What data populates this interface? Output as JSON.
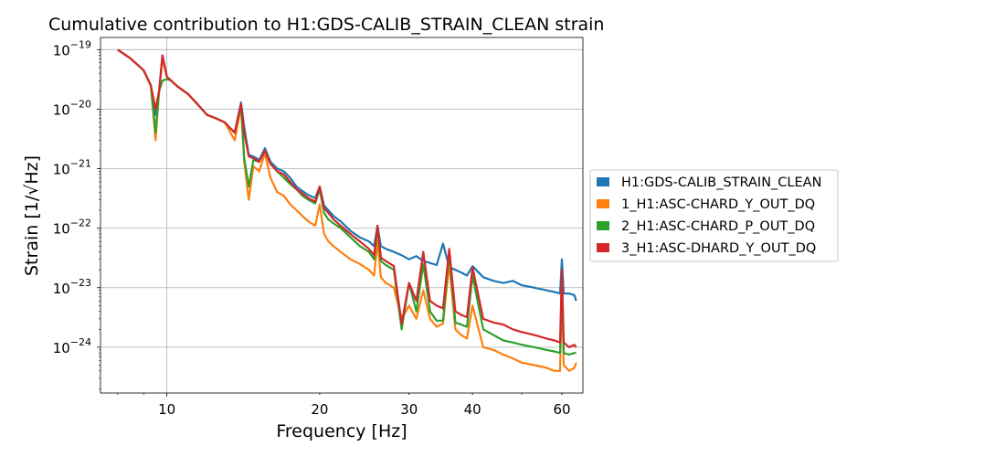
{
  "chart_data": {
    "type": "line",
    "title": "Cumulative contribution to H1:GDS-CALIB_STRAIN_CLEAN strain",
    "xlabel": "Frequency [Hz]",
    "ylabel": "Strain [1/√Hz]",
    "xscale": "log",
    "yscale": "log",
    "xlim": [
      7.4,
      66
    ],
    "ylim": [
      1.7e-25,
      1.6e-19
    ],
    "grid": true,
    "legend_position": "right-outside",
    "x_ticks": [
      {
        "value": 10,
        "label": "10"
      },
      {
        "value": 20,
        "label": "20"
      },
      {
        "value": 30,
        "label": "30"
      },
      {
        "value": 40,
        "label": "40"
      },
      {
        "value": 60,
        "label": "60"
      }
    ],
    "y_ticks": [
      {
        "value": 1e-19,
        "base": "10",
        "exp": "−19"
      },
      {
        "value": 1e-20,
        "base": "10",
        "exp": "−20"
      },
      {
        "value": 1e-21,
        "base": "10",
        "exp": "−21"
      },
      {
        "value": 1e-22,
        "base": "10",
        "exp": "−22"
      },
      {
        "value": 1e-23,
        "base": "10",
        "exp": "−23"
      },
      {
        "value": 1e-24,
        "base": "10",
        "exp": "−24"
      }
    ],
    "series": [
      {
        "name": "H1:GDS-CALIB_STRAIN_CLEAN",
        "color": "#1f77b4",
        "x": [
          8.0,
          8.5,
          9.0,
          9.3,
          9.5,
          9.65,
          9.8,
          10.0,
          10.2,
          10.5,
          11.0,
          11.5,
          12.0,
          12.5,
          13.0,
          13.6,
          14.0,
          14.2,
          14.5,
          14.8,
          15.2,
          15.6,
          16.0,
          16.5,
          17.0,
          17.5,
          18.0,
          18.5,
          19.0,
          19.6,
          20.0,
          20.4,
          20.8,
          21.3,
          22.0,
          23.0,
          24.0,
          25.0,
          25.6,
          26.0,
          26.4,
          27.0,
          28.0,
          29.0,
          30.0,
          31.0,
          32.0,
          33.0,
          34.0,
          35.0,
          36.0,
          37.0,
          38.0,
          39.0,
          40.0,
          42.0,
          44.0,
          46.0,
          48.0,
          50.0,
          53.0,
          56.0,
          58.0,
          59.5,
          60.0,
          60.5,
          62.0,
          63.5,
          64.0
        ],
        "y": [
          1e-19,
          7e-20,
          4.5e-20,
          2.5e-20,
          8e-21,
          2e-20,
          8e-20,
          3.5e-20,
          3e-20,
          2.4e-20,
          1.8e-20,
          1.2e-20,
          8e-21,
          7e-21,
          6e-21,
          4e-21,
          1.3e-20,
          5e-21,
          1.7e-21,
          1.6e-21,
          1.4e-21,
          2.2e-21,
          1.3e-21,
          1e-21,
          9e-22,
          7e-22,
          5e-22,
          4.2e-22,
          3.6e-22,
          3.2e-22,
          5e-22,
          2.4e-22,
          2e-22,
          1.6e-22,
          1.3e-22,
          9e-23,
          7e-23,
          6e-23,
          5e-23,
          1.1e-22,
          5e-23,
          4.5e-23,
          4e-23,
          3.5e-23,
          3e-23,
          3.4e-23,
          2.8e-23,
          2.6e-23,
          2.4e-23,
          5.5e-23,
          2.2e-23,
          2e-23,
          1.8e-23,
          1.6e-23,
          2.3e-23,
          1.5e-23,
          1.3e-23,
          1.2e-23,
          1.3e-23,
          1.1e-23,
          1e-23,
          9e-24,
          8.5e-24,
          8e-24,
          3e-23,
          8e-24,
          8e-24,
          7.5e-24,
          6e-24
        ]
      },
      {
        "name": "1_H1:ASC-CHARD_Y_OUT_DQ",
        "color": "#ff7f0e",
        "x": [
          8.0,
          8.5,
          9.0,
          9.3,
          9.5,
          9.65,
          9.8,
          10.0,
          10.2,
          10.5,
          11.0,
          11.5,
          12.0,
          12.5,
          13.0,
          13.6,
          14.0,
          14.2,
          14.5,
          14.8,
          15.2,
          15.6,
          16.0,
          16.5,
          17.0,
          17.5,
          18.0,
          18.5,
          19.0,
          19.6,
          20.0,
          20.4,
          20.8,
          21.3,
          22.0,
          23.0,
          24.0,
          25.0,
          25.6,
          26.0,
          26.4,
          27.0,
          28.0,
          29.0,
          30.0,
          31.0,
          32.0,
          33.0,
          34.0,
          35.0,
          36.0,
          37.0,
          38.0,
          39.0,
          40.0,
          42.0,
          44.0,
          46.0,
          48.0,
          50.0,
          53.0,
          56.0,
          58.0,
          59.5,
          60.0,
          60.5,
          62.0,
          63.5,
          64.0
        ],
        "y": [
          1e-19,
          7e-20,
          4.5e-20,
          2.5e-20,
          3e-21,
          2e-20,
          7e-20,
          3.5e-20,
          3e-20,
          2.4e-20,
          1.8e-20,
          1.2e-20,
          8e-21,
          7e-21,
          6e-21,
          3e-21,
          1.1e-20,
          1.3e-21,
          3e-22,
          1.1e-21,
          9e-22,
          1.8e-21,
          7e-22,
          4e-22,
          3.5e-22,
          2.5e-22,
          2e-22,
          1.6e-22,
          1.3e-22,
          1.1e-22,
          2.5e-22,
          8e-23,
          6e-23,
          5e-23,
          4e-23,
          3e-23,
          2.5e-23,
          2e-23,
          1.6e-23,
          6e-23,
          1.5e-23,
          1.2e-23,
          1e-23,
          3e-24,
          5e-24,
          3e-24,
          9e-24,
          3e-24,
          2.2e-24,
          2.5e-24,
          2.5e-23,
          2e-24,
          1.6e-24,
          1.4e-24,
          5e-24,
          1e-24,
          9e-25,
          7.5e-25,
          6.5e-25,
          5.5e-25,
          5e-25,
          4.5e-25,
          4e-25,
          4e-25,
          1.2e-23,
          5e-25,
          4e-25,
          4.5e-25,
          5.5e-25
        ]
      },
      {
        "name": "2_H1:ASC-CHARD_P_OUT_DQ",
        "color": "#2ca02c",
        "x": [
          8.0,
          8.5,
          9.0,
          9.3,
          9.5,
          9.65,
          9.8,
          10.0,
          10.2,
          10.5,
          11.0,
          11.5,
          12.0,
          12.5,
          13.0,
          13.6,
          14.0,
          14.2,
          14.5,
          14.8,
          15.2,
          15.6,
          16.0,
          16.5,
          17.0,
          17.5,
          18.0,
          18.5,
          19.0,
          19.6,
          20.0,
          20.4,
          20.8,
          21.3,
          22.0,
          23.0,
          24.0,
          25.0,
          25.6,
          26.0,
          26.4,
          27.0,
          28.0,
          29.0,
          30.0,
          31.0,
          32.0,
          33.0,
          34.0,
          35.0,
          36.0,
          37.0,
          38.0,
          39.0,
          40.0,
          42.0,
          44.0,
          46.0,
          48.0,
          50.0,
          53.0,
          56.0,
          58.0,
          59.5,
          60.0,
          60.5,
          62.0,
          63.5,
          64.0
        ],
        "y": [
          1e-19,
          7e-20,
          4.5e-20,
          2.5e-20,
          4e-21,
          2e-20,
          3e-20,
          3.2e-20,
          3e-20,
          2.4e-20,
          1.8e-20,
          1.2e-20,
          8e-21,
          7e-21,
          6e-21,
          4e-21,
          1.2e-20,
          1.5e-21,
          5e-22,
          1.4e-21,
          1.3e-21,
          2e-21,
          1.2e-21,
          9e-22,
          7e-22,
          5.5e-22,
          4.5e-22,
          3.5e-22,
          3e-22,
          2.6e-22,
          4.5e-22,
          1.8e-22,
          1.4e-22,
          1.2e-22,
          1e-22,
          7e-23,
          5e-23,
          4e-23,
          3e-23,
          1e-22,
          2.8e-23,
          2.4e-23,
          2e-23,
          2e-24,
          1.2e-23,
          4e-24,
          2.5e-23,
          4e-24,
          2.8e-24,
          2.8e-24,
          4e-23,
          2.6e-24,
          2.4e-24,
          2.2e-24,
          1.6e-23,
          2e-24,
          1.6e-24,
          1.3e-24,
          1.2e-24,
          1.1e-24,
          1e-24,
          9e-25,
          8.5e-25,
          8e-25,
          1.5e-23,
          8e-25,
          7.5e-25,
          8e-25,
          8e-25
        ]
      },
      {
        "name": "3_H1:ASC-DHARD_Y_OUT_DQ",
        "color": "#d62728",
        "x": [
          8.0,
          8.5,
          9.0,
          9.3,
          9.5,
          9.65,
          9.8,
          10.0,
          10.2,
          10.5,
          11.0,
          11.5,
          12.0,
          12.5,
          13.0,
          13.6,
          14.0,
          14.2,
          14.5,
          14.8,
          15.2,
          15.6,
          16.0,
          16.5,
          17.0,
          17.5,
          18.0,
          18.5,
          19.0,
          19.6,
          20.0,
          20.4,
          20.8,
          21.3,
          22.0,
          23.0,
          24.0,
          25.0,
          25.6,
          26.0,
          26.4,
          27.0,
          28.0,
          29.0,
          30.0,
          31.0,
          32.0,
          33.0,
          34.0,
          35.0,
          36.0,
          37.0,
          38.0,
          39.0,
          40.0,
          42.0,
          44.0,
          46.0,
          48.0,
          50.0,
          53.0,
          56.0,
          58.0,
          59.5,
          60.0,
          60.5,
          62.0,
          63.5,
          64.0
        ],
        "y": [
          1e-19,
          7e-20,
          4.5e-20,
          2.5e-20,
          1e-20,
          2e-20,
          8e-20,
          3.5e-20,
          3e-20,
          2.4e-20,
          1.8e-20,
          1.2e-20,
          8e-21,
          7e-21,
          6e-21,
          4e-21,
          1.2e-20,
          4e-21,
          1.6e-21,
          1.5e-21,
          1.3e-21,
          2e-21,
          1.2e-21,
          9e-22,
          8e-22,
          6e-22,
          4.5e-22,
          3.8e-22,
          3.2e-22,
          2.8e-22,
          5e-22,
          2.2e-22,
          1.8e-22,
          1.4e-22,
          1.1e-22,
          8e-23,
          6e-23,
          4.5e-23,
          3.5e-23,
          1.1e-22,
          3.2e-23,
          2.8e-23,
          2.3e-23,
          2.5e-24,
          1.2e-23,
          6e-24,
          4e-23,
          6e-24,
          5e-24,
          4.5e-24,
          4.5e-23,
          4e-24,
          3.5e-24,
          3.2e-24,
          2.2e-23,
          3e-24,
          2.6e-24,
          2.4e-24,
          2e-24,
          1.8e-24,
          1.6e-24,
          1.4e-24,
          1.3e-24,
          1.2e-24,
          2e-23,
          1.2e-24,
          1e-24,
          1.1e-24,
          1e-24
        ]
      }
    ]
  }
}
